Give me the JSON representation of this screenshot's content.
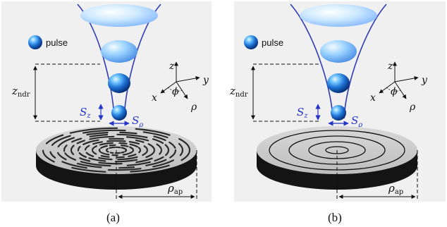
{
  "panels": [
    {
      "caption": "(a)",
      "legend_label": "pulse",
      "disk_surface": "structured-random-grooves",
      "labels": {
        "z_ndr": {
          "main": "z",
          "sub": "ndr"
        },
        "S_z": {
          "main": "S",
          "sub": "z"
        },
        "S_rho": {
          "main": "S",
          "sub": "ρ"
        },
        "rho_ap": {
          "main": "ρ",
          "sub": "ap"
        },
        "axis_z": "z",
        "axis_x": "x",
        "axis_y": "y",
        "axis_rho": "ρ",
        "axis_phi": "ϕ"
      }
    },
    {
      "caption": "(b)",
      "legend_label": "pulse",
      "disk_surface": "concentric-rings",
      "labels": {
        "z_ndr": {
          "main": "z",
          "sub": "ndr"
        },
        "S_z": {
          "main": "S",
          "sub": "z"
        },
        "S_rho": {
          "main": "S",
          "sub": "ρ"
        },
        "rho_ap": {
          "main": "ρ",
          "sub": "ap"
        },
        "axis_z": "z",
        "axis_x": "x",
        "axis_y": "y",
        "axis_rho": "ρ",
        "axis_phi": "ϕ"
      }
    }
  ],
  "colors": {
    "beam_line": "#2f3bb5",
    "panel_bg": "#f0f0f0",
    "disk_top": "#c9c9c9",
    "disk_side": "#141414",
    "annotation_blue": "#2433c8",
    "sphere": "#1f74d6"
  }
}
